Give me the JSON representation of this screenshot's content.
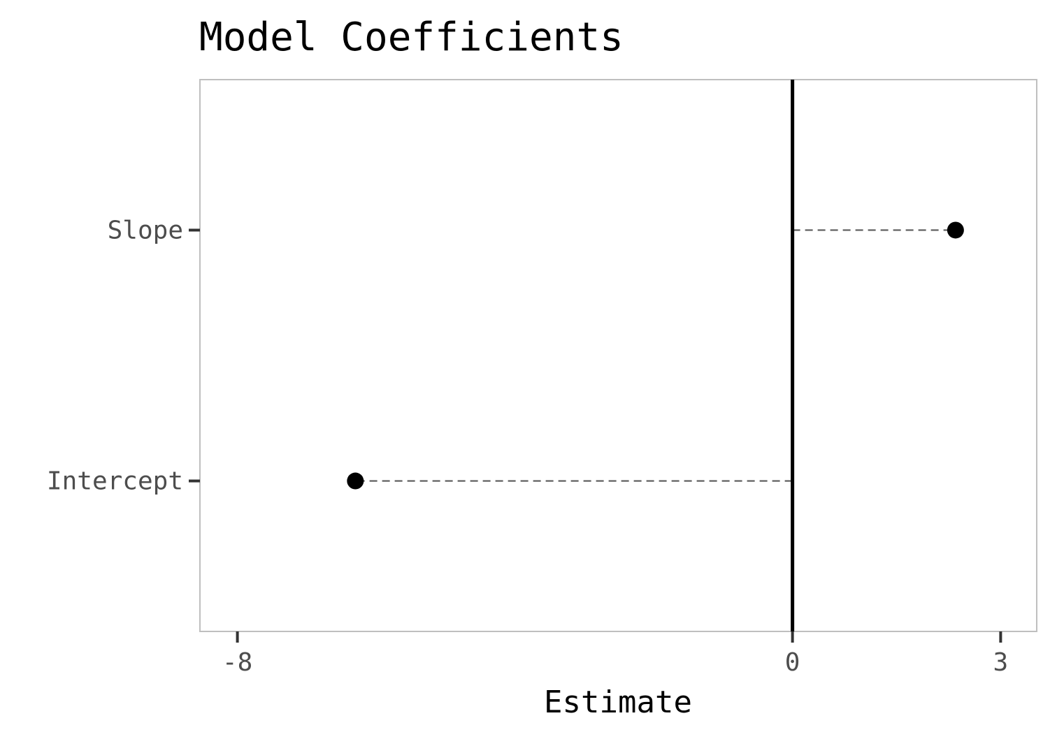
{
  "chart_data": {
    "type": "scatter",
    "title": "Model Coefficients",
    "xlabel": "Estimate",
    "ylabel": "",
    "categories": [
      "Intercept",
      "Slope"
    ],
    "values": [
      -6.3,
      2.35
    ],
    "xlim": [
      -8.54,
      3.52
    ],
    "xticks": [
      "-8",
      "0",
      "3"
    ],
    "reference_line": 0,
    "grid": false,
    "legend": "none",
    "colors": {
      "point": "#000000",
      "segment": "#595959",
      "reference_line": "#000000",
      "panel_border": "#bfbfbf",
      "tick": "#333333",
      "tick_label": "#4d4d4d"
    }
  }
}
